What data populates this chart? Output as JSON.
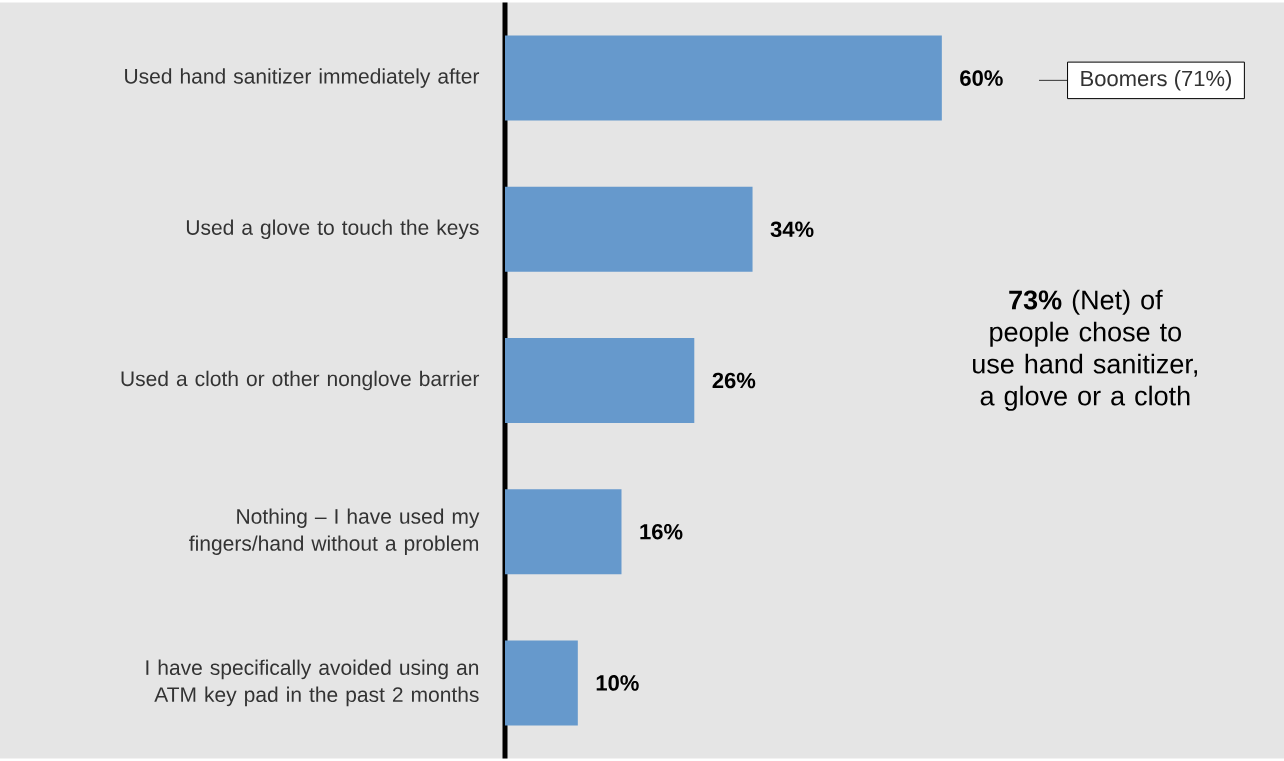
{
  "chart_data": {
    "type": "bar",
    "orientation": "horizontal",
    "categories": [
      "Used hand sanitizer immediately after",
      "Used a glove to touch the keys",
      "Used a cloth or other nonglove barrier",
      "Nothing – I have used my fingers/hand without a problem",
      "I have specifically avoided using an ATM key pad in the past 2 months"
    ],
    "values": [
      60,
      34,
      26,
      16,
      10
    ],
    "value_labels": [
      "60%",
      "34%",
      "26%",
      "16%",
      "10%"
    ],
    "color": "#6699cc",
    "annotations": [
      "Boomers (71%)",
      "**73%** (Net) of people chose to use hand sanitizer, a glove or a cloth"
    ]
  }
}
